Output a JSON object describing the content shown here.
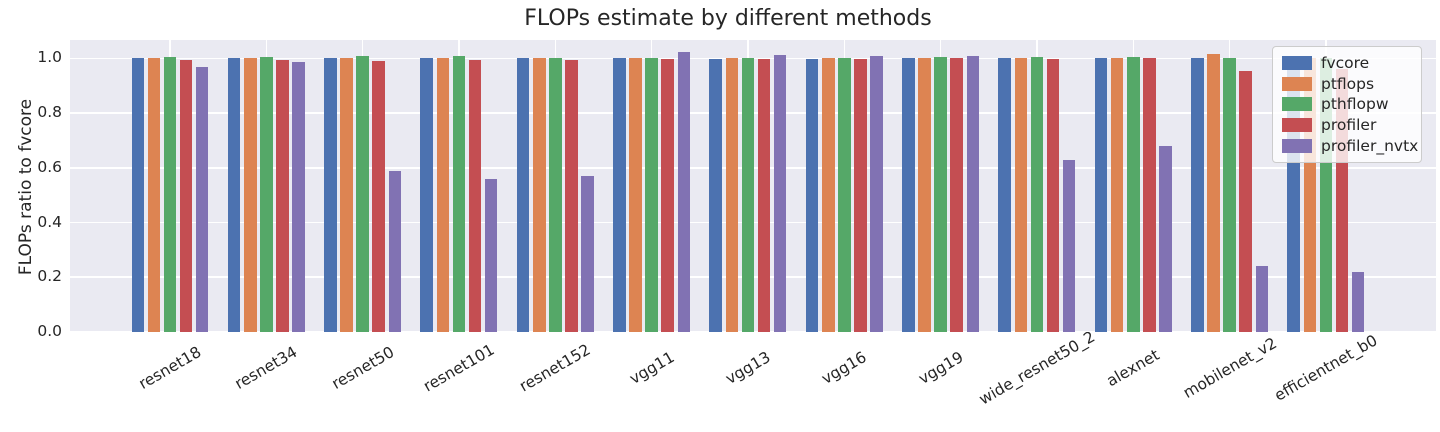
{
  "chart_data": {
    "type": "bar",
    "title": "FLOPs estimate by different methods",
    "ylabel": "FLOPs ratio to fvcore",
    "xlabel": "",
    "categories": [
      "resnet18",
      "resnet34",
      "resnet50",
      "resnet101",
      "resnet152",
      "vgg11",
      "vgg13",
      "vgg16",
      "vgg19",
      "wide_resnet50_2",
      "alexnet",
      "mobilenet_v2",
      "efficientnet_b0"
    ],
    "series": [
      {
        "name": "fvcore",
        "color": "#4C72B0",
        "values": [
          1.0,
          1.0,
          1.0,
          1.0,
          1.0,
          1.0,
          0.999,
          0.999,
          1.0,
          1.0,
          1.0,
          1.0,
          1.0
        ]
      },
      {
        "name": "ptflops",
        "color": "#DD8452",
        "values": [
          1.0,
          1.0,
          1.002,
          1.0,
          1.0,
          1.002,
          1.003,
          1.0,
          1.0,
          1.0,
          1.0,
          1.015,
          1.0
        ]
      },
      {
        "name": "pthflopw",
        "color": "#55A868",
        "values": [
          1.005,
          1.005,
          1.008,
          1.008,
          1.002,
          1.001,
          1.0,
          1.001,
          1.006,
          1.005,
          1.006,
          1.002,
          1.0
        ]
      },
      {
        "name": "profiler",
        "color": "#C44E52",
        "values": [
          0.995,
          0.995,
          0.992,
          0.993,
          0.995,
          0.998,
          0.997,
          0.997,
          1.0,
          0.998,
          1.0,
          0.955,
          0.96
        ]
      },
      {
        "name": "profiler_nvtx",
        "color": "#8172B3",
        "values": [
          0.97,
          0.988,
          0.59,
          0.56,
          0.57,
          1.022,
          1.014,
          1.009,
          1.008,
          0.63,
          0.68,
          0.24,
          0.22
        ]
      }
    ],
    "yticks": [
      0.0,
      0.2,
      0.4,
      0.6,
      0.8,
      1.0
    ],
    "ylim": [
      0,
      1.067
    ],
    "grid": true,
    "legend_position": "upper right",
    "plot_bg_color": "#EAEAF2",
    "grid_color": "#FFFFFF"
  }
}
